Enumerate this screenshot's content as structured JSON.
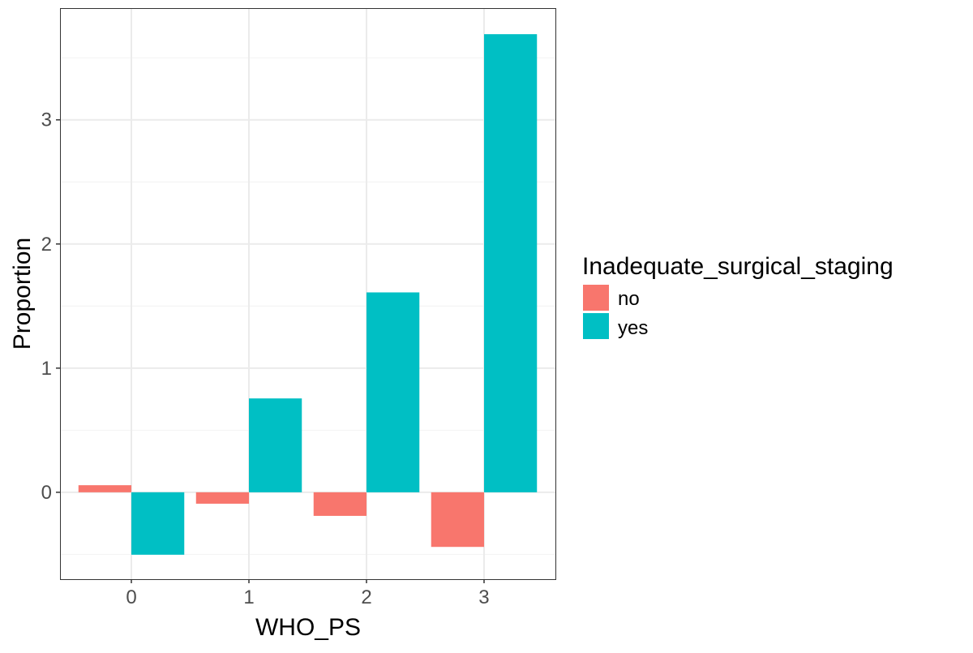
{
  "chart_data": {
    "type": "bar",
    "title": "",
    "xlabel": "WHO_PS",
    "ylabel": "Proportion",
    "categories": [
      "0",
      "1",
      "2",
      "3"
    ],
    "series": [
      {
        "name": "no",
        "color": "#F8766D",
        "values": [
          0.057,
          -0.092,
          -0.19,
          -0.44
        ]
      },
      {
        "name": "yes",
        "color": "#00BFC4",
        "values": [
          -0.503,
          0.756,
          1.61,
          3.69
        ]
      }
    ],
    "ylim": [
      -0.7,
      3.9
    ],
    "yticks": [
      0,
      1,
      2,
      3
    ],
    "ytick_labels": [
      "0",
      "1",
      "2",
      "3"
    ],
    "grid": true,
    "legend": {
      "title": "Inadequate_surgical_staging",
      "position": "right",
      "entries": [
        "no",
        "yes"
      ]
    }
  }
}
